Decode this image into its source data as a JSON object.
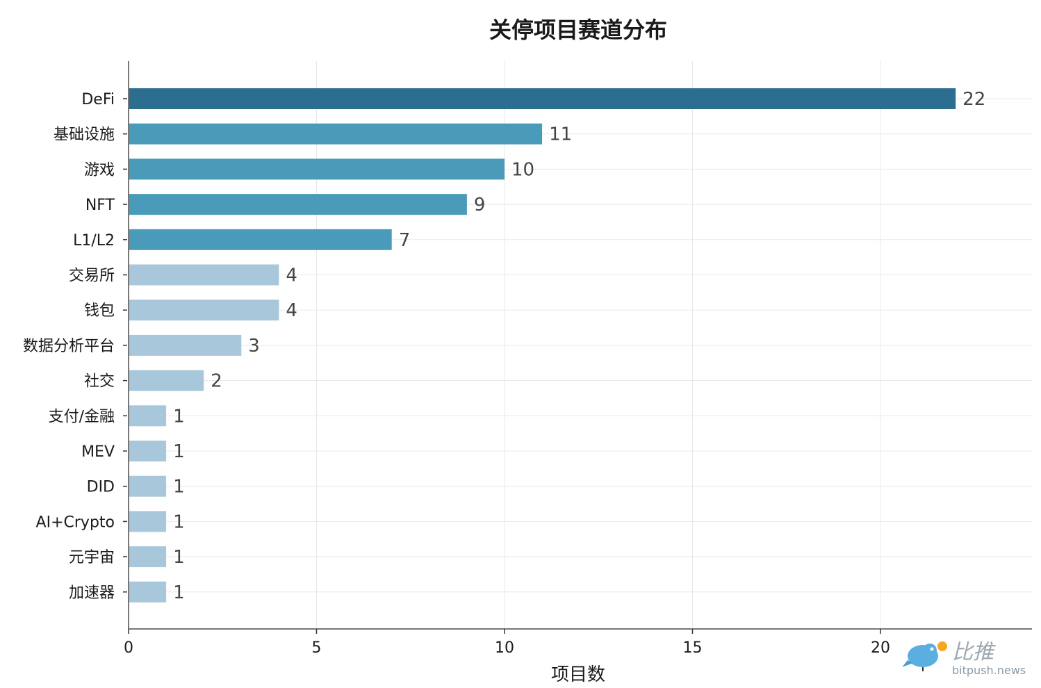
{
  "chart_data": {
    "type": "bar",
    "orientation": "horizontal",
    "title": "关停项目赛道分布",
    "xlabel": "项目数",
    "ylabel": "",
    "xlim": [
      0,
      24
    ],
    "xticks": [
      0,
      5,
      10,
      15,
      20
    ],
    "grid": true,
    "categories": [
      "DeFi",
      "基础设施",
      "游戏",
      "NFT",
      "L1/L2",
      "交易所",
      "钱包",
      "数据分析平台",
      "社交",
      "支付/金融",
      "MEV",
      "DID",
      "AI+Crypto",
      "元宇宙",
      "加速器"
    ],
    "values": [
      22,
      11,
      10,
      9,
      7,
      4,
      4,
      3,
      2,
      1,
      1,
      1,
      1,
      1,
      1
    ],
    "bar_colors": [
      "#2c6e8f",
      "#4a9aba",
      "#4a9aba",
      "#4a9aba",
      "#4a9aba",
      "#a9c7da",
      "#a9c7da",
      "#a9c7da",
      "#a9c7da",
      "#a9c7da",
      "#a9c7da",
      "#a9c7da",
      "#a9c7da",
      "#a9c7da",
      "#a9c7da"
    ]
  },
  "watermark": {
    "brand_cn": "比推",
    "brand_url": "bitpush.news",
    "bird_color": "#5aaee0",
    "badge_color": "#f5a623"
  }
}
